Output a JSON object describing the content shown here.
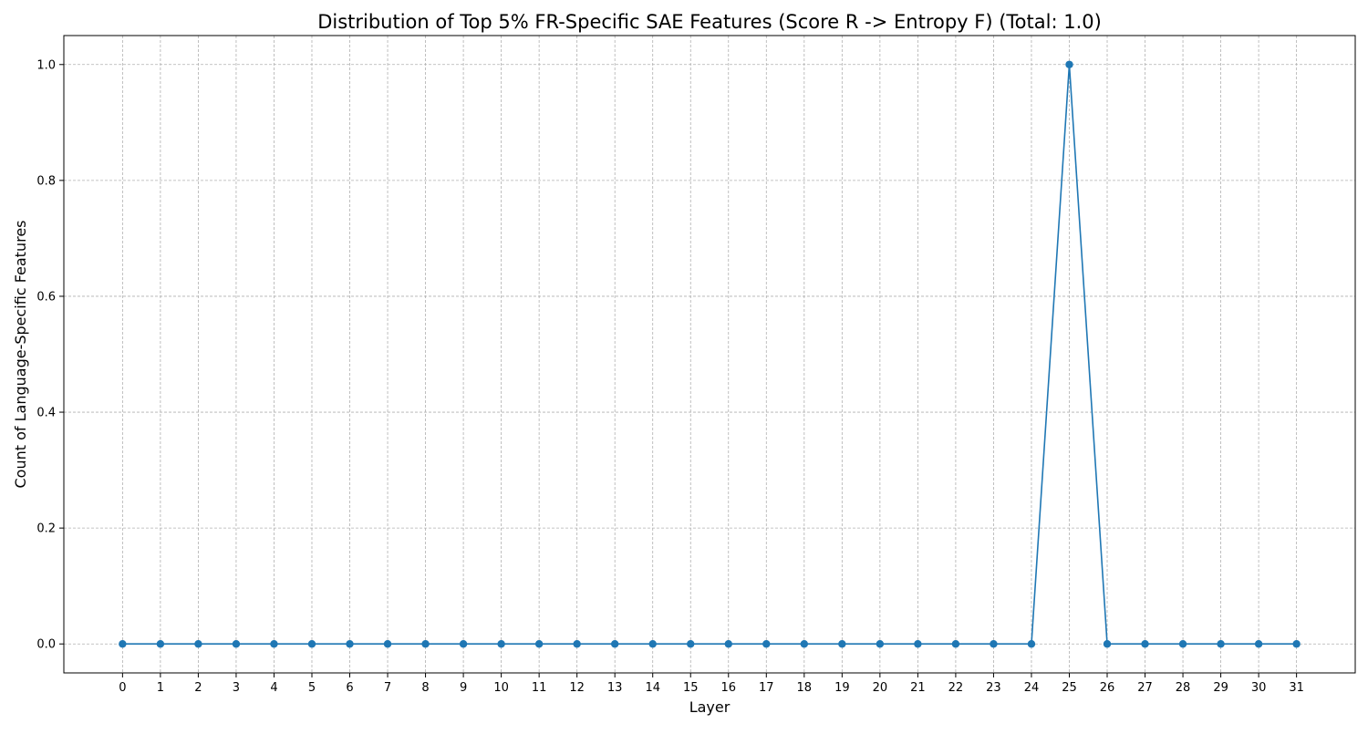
{
  "chart_data": {
    "type": "line",
    "title": "Distribution of Top 5% FR-Specific SAE Features (Score R -> Entropy F) (Total: 1.0)",
    "xlabel": "Layer",
    "ylabel": "Count of Language-Specific Features",
    "x": [
      0,
      1,
      2,
      3,
      4,
      5,
      6,
      7,
      8,
      9,
      10,
      11,
      12,
      13,
      14,
      15,
      16,
      17,
      18,
      19,
      20,
      21,
      22,
      23,
      24,
      25,
      26,
      27,
      28,
      29,
      30,
      31
    ],
    "series": [
      {
        "values": [
          0,
          0,
          0,
          0,
          0,
          0,
          0,
          0,
          0,
          0,
          0,
          0,
          0,
          0,
          0,
          0,
          0,
          0,
          0,
          0,
          0,
          0,
          0,
          0,
          0,
          1.0,
          0,
          0,
          0,
          0,
          0,
          0
        ],
        "color": "#1f77b4",
        "marker": "circle"
      }
    ],
    "xticks": [
      "0",
      "1",
      "2",
      "3",
      "4",
      "5",
      "6",
      "7",
      "8",
      "9",
      "10",
      "11",
      "12",
      "13",
      "14",
      "15",
      "16",
      "17",
      "18",
      "19",
      "20",
      "21",
      "22",
      "23",
      "24",
      "25",
      "26",
      "27",
      "28",
      "29",
      "30",
      "31"
    ],
    "yticks": [
      "0.0",
      "0.2",
      "0.4",
      "0.6",
      "0.8",
      "1.0"
    ],
    "ytick_values": [
      0,
      0.2,
      0.4,
      0.6,
      0.8,
      1.0
    ],
    "xlim": [
      -1.55,
      32.55
    ],
    "ylim": [
      -0.05,
      1.05
    ],
    "grid": true,
    "legend": "none"
  }
}
